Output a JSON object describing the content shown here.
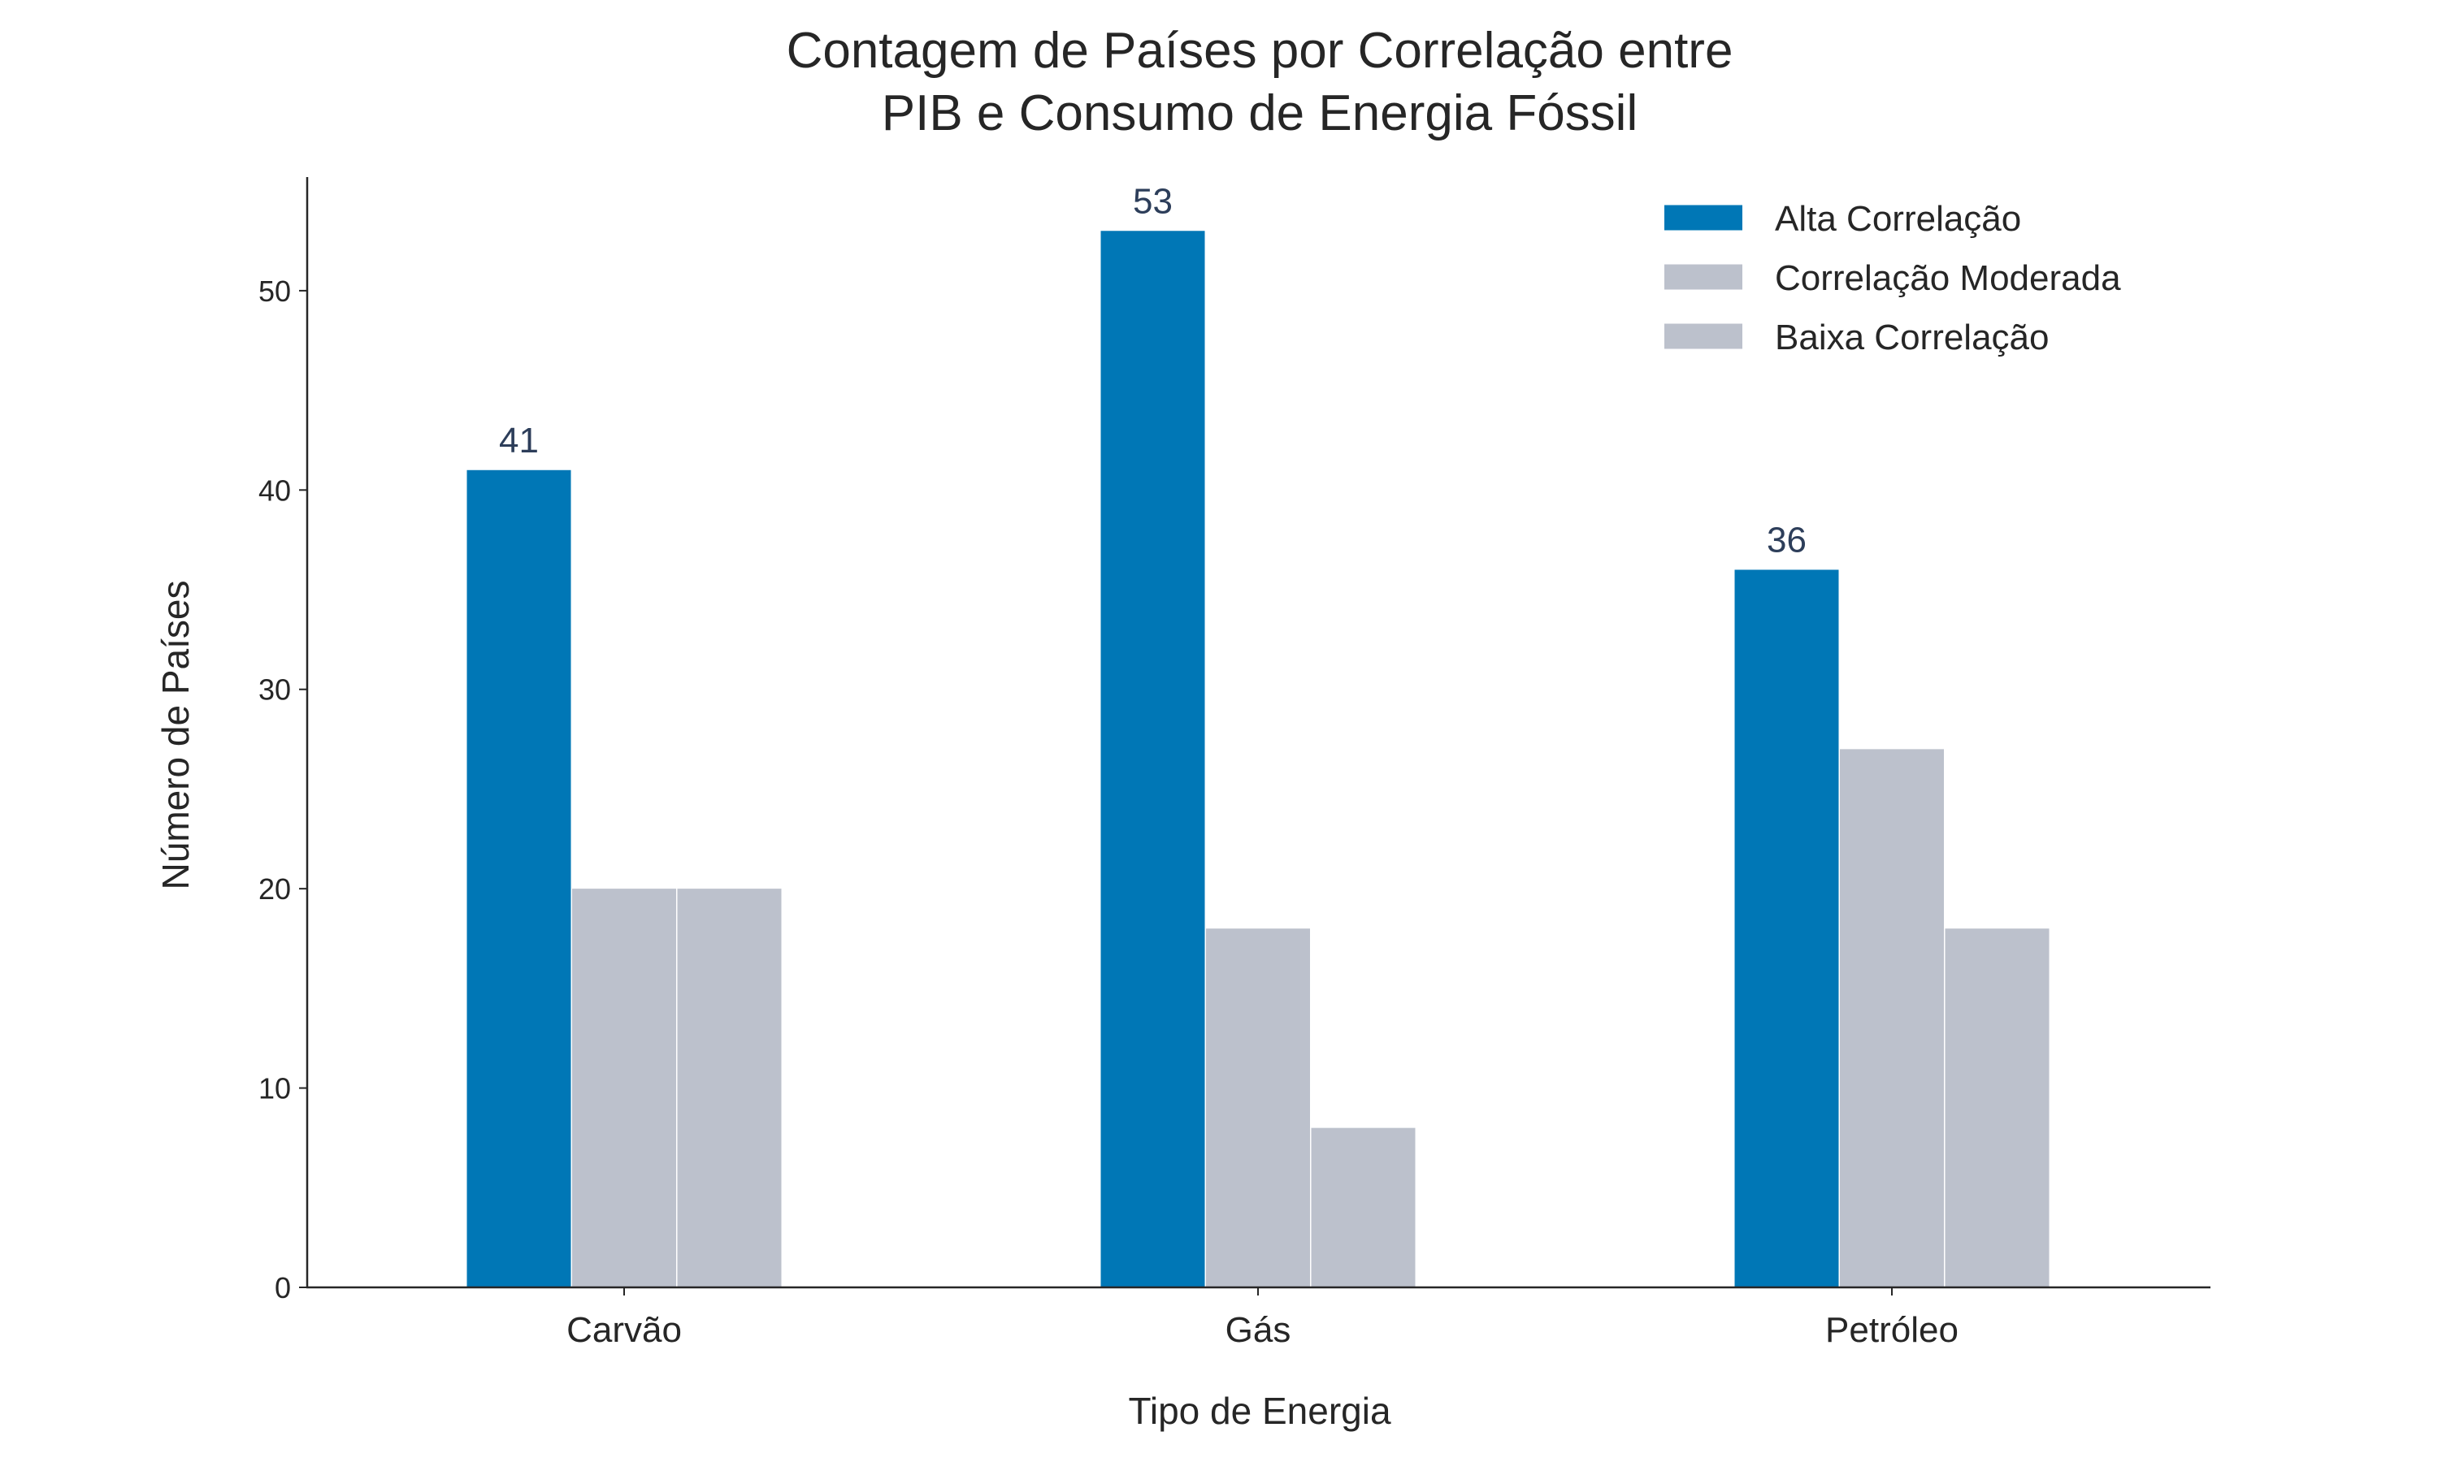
{
  "chart_data": {
    "type": "bar",
    "title_lines": [
      "Contagem de Países por Correlação entre",
      "PIB e Consumo de Energia Fóssil"
    ],
    "xlabel": "Tipo de Energia",
    "ylabel": "Número de Países",
    "categories": [
      "Carvão",
      "Gás",
      "Petróleo"
    ],
    "series": [
      {
        "name": "Alta Correlação",
        "values": [
          41,
          53,
          36
        ],
        "color": "#0077b6",
        "show_labels": true
      },
      {
        "name": "Correlação Moderada",
        "values": [
          20,
          18,
          27
        ],
        "color": "#bcc1cc",
        "show_labels": false
      },
      {
        "name": "Baixa Correlação",
        "values": [
          20,
          8,
          18
        ],
        "color": "#bcc1cc",
        "show_labels": false
      }
    ],
    "ylim": [
      0,
      55.7
    ],
    "yticks": [
      0,
      10,
      20,
      30,
      40,
      50
    ],
    "grid": false,
    "legend_position": "top-right"
  }
}
